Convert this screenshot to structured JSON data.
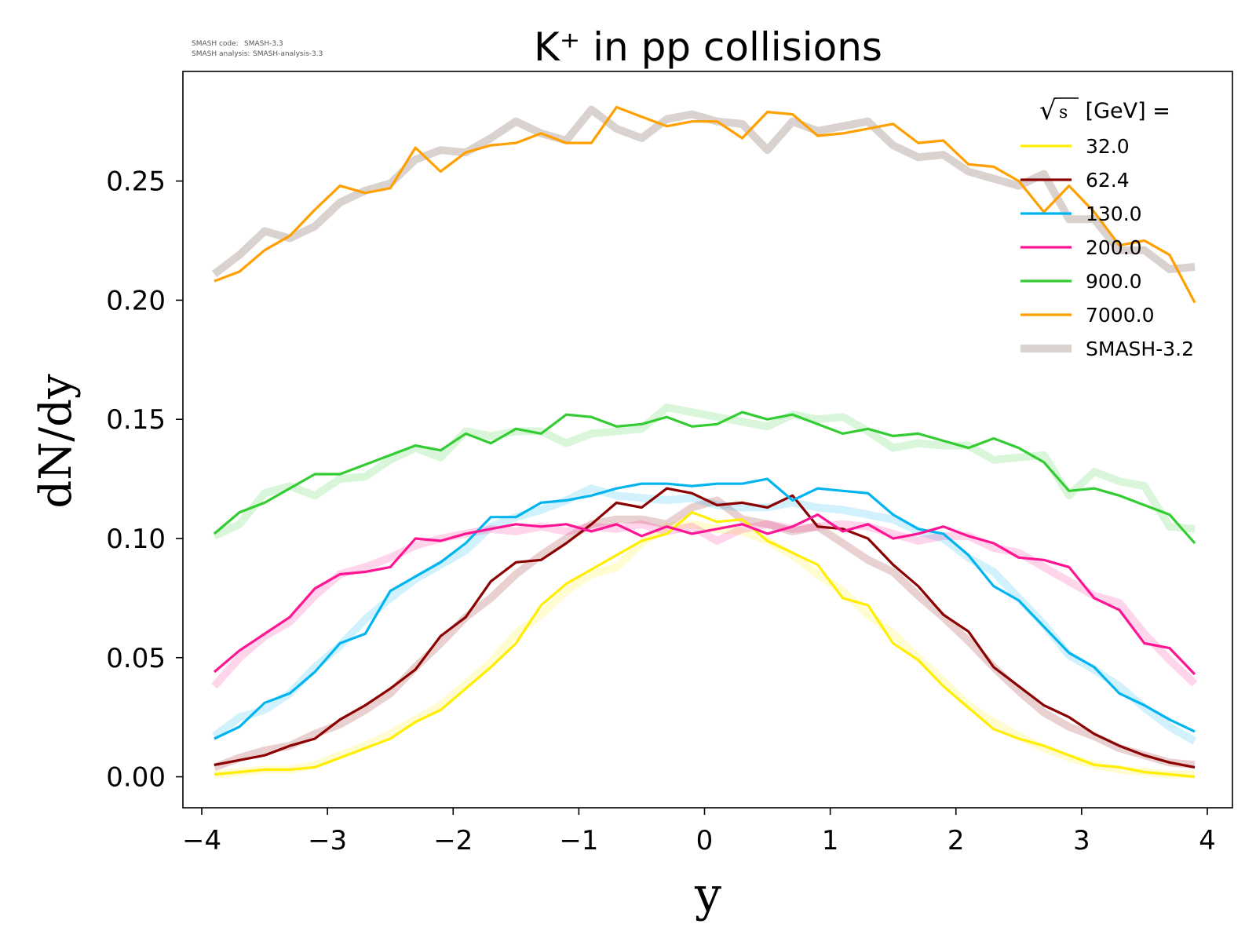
{
  "credit": {
    "code_label": "SMASH code:",
    "code_value": "SMASH-3.3",
    "analysis_label": "SMASH analysis:",
    "analysis_value": "SMASH-analysis-3.3"
  },
  "chart_data": {
    "type": "line",
    "title": "K⁺ in pp collisions",
    "xlabel": "y",
    "ylabel": "dN/dy",
    "xlim": [
      -4.15,
      4.2
    ],
    "ylim": [
      -0.013,
      0.296
    ],
    "xticks": [
      -4,
      -3,
      -2,
      -1,
      0,
      1,
      2,
      3,
      4
    ],
    "xtick_labels": [
      "−4",
      "−3",
      "−2",
      "−1",
      "0",
      "1",
      "2",
      "3",
      "4"
    ],
    "yticks": [
      0.0,
      0.05,
      0.1,
      0.15,
      0.2,
      0.25
    ],
    "ytick_labels": [
      "0.00",
      "0.05",
      "0.10",
      "0.15",
      "0.20",
      "0.25"
    ],
    "grid": false,
    "legend": {
      "position": "top-right",
      "title_root": "√",
      "title_var": "s",
      "title_rest": " [GeV] =",
      "reference_label": "SMASH-3.2",
      "reference_color": "#d9d2cf"
    },
    "x": [
      -3.9,
      -3.7,
      -3.5,
      -3.3,
      -3.1,
      -2.9,
      -2.7,
      -2.5,
      -2.3,
      -2.1,
      -1.9,
      -1.7,
      -1.5,
      -1.3,
      -1.1,
      -0.9,
      -0.7,
      -0.5,
      -0.3,
      -0.1,
      0.1,
      0.3,
      0.5,
      0.7,
      0.9,
      1.1,
      1.3,
      1.5,
      1.7,
      1.9,
      2.1,
      2.3,
      2.5,
      2.7,
      2.9,
      3.1,
      3.3,
      3.5,
      3.7,
      3.9
    ],
    "series": [
      {
        "name": "32.0",
        "color": "#ffee00",
        "values": [
          0.001,
          0.002,
          0.003,
          0.003,
          0.004,
          0.008,
          0.012,
          0.016,
          0.023,
          0.028,
          0.037,
          0.046,
          0.056,
          0.072,
          0.081,
          0.087,
          0.093,
          0.099,
          0.102,
          0.111,
          0.107,
          0.108,
          0.099,
          0.094,
          0.089,
          0.075,
          0.072,
          0.056,
          0.049,
          0.038,
          0.029,
          0.02,
          0.016,
          0.013,
          0.009,
          0.005,
          0.004,
          0.002,
          0.001,
          0.0
        ],
        "ref_values": [
          0.001,
          0.002,
          0.003,
          0.003,
          0.005,
          0.009,
          0.013,
          0.018,
          0.024,
          0.03,
          0.039,
          0.048,
          0.06,
          0.068,
          0.078,
          0.085,
          0.088,
          0.098,
          0.105,
          0.106,
          0.104,
          0.103,
          0.099,
          0.093,
          0.085,
          0.078,
          0.068,
          0.06,
          0.05,
          0.04,
          0.03,
          0.023,
          0.017,
          0.012,
          0.008,
          0.005,
          0.003,
          0.002,
          0.001,
          0.001
        ]
      },
      {
        "name": "62.4",
        "color": "#8b0000",
        "values": [
          0.005,
          0.007,
          0.009,
          0.013,
          0.016,
          0.024,
          0.03,
          0.037,
          0.045,
          0.059,
          0.067,
          0.082,
          0.09,
          0.091,
          0.098,
          0.106,
          0.115,
          0.113,
          0.121,
          0.119,
          0.114,
          0.115,
          0.113,
          0.118,
          0.105,
          0.104,
          0.1,
          0.089,
          0.08,
          0.068,
          0.061,
          0.046,
          0.038,
          0.03,
          0.025,
          0.018,
          0.013,
          0.009,
          0.006,
          0.004
        ],
        "ref_values": [
          0.004,
          0.008,
          0.011,
          0.013,
          0.018,
          0.022,
          0.028,
          0.035,
          0.046,
          0.056,
          0.067,
          0.075,
          0.085,
          0.093,
          0.1,
          0.106,
          0.108,
          0.108,
          0.106,
          0.113,
          0.116,
          0.108,
          0.106,
          0.103,
          0.105,
          0.098,
          0.091,
          0.086,
          0.076,
          0.067,
          0.057,
          0.046,
          0.036,
          0.027,
          0.021,
          0.017,
          0.012,
          0.009,
          0.006,
          0.005
        ]
      },
      {
        "name": "130.0",
        "color": "#00b4f0",
        "values": [
          0.016,
          0.021,
          0.031,
          0.035,
          0.044,
          0.056,
          0.06,
          0.078,
          0.084,
          0.09,
          0.098,
          0.109,
          0.109,
          0.115,
          0.116,
          0.118,
          0.121,
          0.123,
          0.123,
          0.122,
          0.123,
          0.123,
          0.125,
          0.116,
          0.121,
          0.12,
          0.119,
          0.11,
          0.104,
          0.102,
          0.093,
          0.08,
          0.074,
          0.063,
          0.052,
          0.046,
          0.035,
          0.03,
          0.024,
          0.019
        ],
        "ref_values": [
          0.017,
          0.025,
          0.028,
          0.035,
          0.046,
          0.055,
          0.066,
          0.075,
          0.083,
          0.089,
          0.095,
          0.105,
          0.109,
          0.112,
          0.116,
          0.121,
          0.118,
          0.117,
          0.116,
          0.117,
          0.114,
          0.113,
          0.113,
          0.115,
          0.113,
          0.112,
          0.11,
          0.108,
          0.103,
          0.1,
          0.092,
          0.086,
          0.075,
          0.064,
          0.051,
          0.045,
          0.038,
          0.029,
          0.021,
          0.015
        ]
      },
      {
        "name": "200.0",
        "color": "#ff1493",
        "values": [
          0.044,
          0.053,
          0.06,
          0.067,
          0.079,
          0.085,
          0.086,
          0.088,
          0.1,
          0.099,
          0.102,
          0.104,
          0.106,
          0.105,
          0.106,
          0.103,
          0.106,
          0.101,
          0.105,
          0.102,
          0.104,
          0.106,
          0.102,
          0.105,
          0.11,
          0.103,
          0.106,
          0.1,
          0.102,
          0.105,
          0.101,
          0.098,
          0.092,
          0.091,
          0.088,
          0.075,
          0.07,
          0.056,
          0.054,
          0.043
        ],
        "ref_values": [
          0.038,
          0.05,
          0.059,
          0.065,
          0.076,
          0.085,
          0.088,
          0.092,
          0.097,
          0.1,
          0.102,
          0.104,
          0.103,
          0.105,
          0.103,
          0.105,
          0.104,
          0.106,
          0.103,
          0.105,
          0.099,
          0.104,
          0.106,
          0.104,
          0.105,
          0.106,
          0.105,
          0.102,
          0.099,
          0.101,
          0.101,
          0.096,
          0.094,
          0.088,
          0.082,
          0.076,
          0.073,
          0.06,
          0.049,
          0.039
        ]
      },
      {
        "name": "900.0",
        "color": "#33cc33",
        "values": [
          0.102,
          0.111,
          0.115,
          0.121,
          0.127,
          0.127,
          0.131,
          0.135,
          0.139,
          0.137,
          0.144,
          0.14,
          0.146,
          0.144,
          0.152,
          0.151,
          0.147,
          0.148,
          0.151,
          0.147,
          0.148,
          0.153,
          0.15,
          0.152,
          0.148,
          0.144,
          0.146,
          0.143,
          0.144,
          0.141,
          0.138,
          0.142,
          0.138,
          0.132,
          0.12,
          0.121,
          0.118,
          0.114,
          0.11,
          0.098
        ],
        "ref_values": [
          0.101,
          0.106,
          0.119,
          0.122,
          0.118,
          0.125,
          0.126,
          0.133,
          0.138,
          0.134,
          0.145,
          0.143,
          0.145,
          0.145,
          0.14,
          0.144,
          0.145,
          0.146,
          0.155,
          0.153,
          0.151,
          0.149,
          0.147,
          0.152,
          0.15,
          0.151,
          0.145,
          0.138,
          0.14,
          0.139,
          0.139,
          0.133,
          0.134,
          0.135,
          0.118,
          0.128,
          0.124,
          0.122,
          0.105,
          0.104
        ]
      },
      {
        "name": "7000.0",
        "color": "#ff9f00",
        "values": [
          0.208,
          0.212,
          0.221,
          0.227,
          0.238,
          0.248,
          0.245,
          0.247,
          0.264,
          0.254,
          0.262,
          0.265,
          0.266,
          0.27,
          0.266,
          0.266,
          0.281,
          0.277,
          0.273,
          0.275,
          0.275,
          0.268,
          0.279,
          0.278,
          0.269,
          0.27,
          0.272,
          0.274,
          0.266,
          0.267,
          0.257,
          0.256,
          0.25,
          0.237,
          0.248,
          0.237,
          0.223,
          0.225,
          0.219,
          0.199
        ],
        "ref_values": [
          0.211,
          0.219,
          0.229,
          0.226,
          0.231,
          0.241,
          0.246,
          0.249,
          0.259,
          0.263,
          0.262,
          0.268,
          0.275,
          0.27,
          0.267,
          0.28,
          0.272,
          0.268,
          0.276,
          0.278,
          0.275,
          0.274,
          0.263,
          0.275,
          0.271,
          0.273,
          0.275,
          0.265,
          0.26,
          0.261,
          0.254,
          0.251,
          0.248,
          0.253,
          0.234,
          0.234,
          0.221,
          0.221,
          0.213,
          0.214
        ]
      }
    ]
  }
}
